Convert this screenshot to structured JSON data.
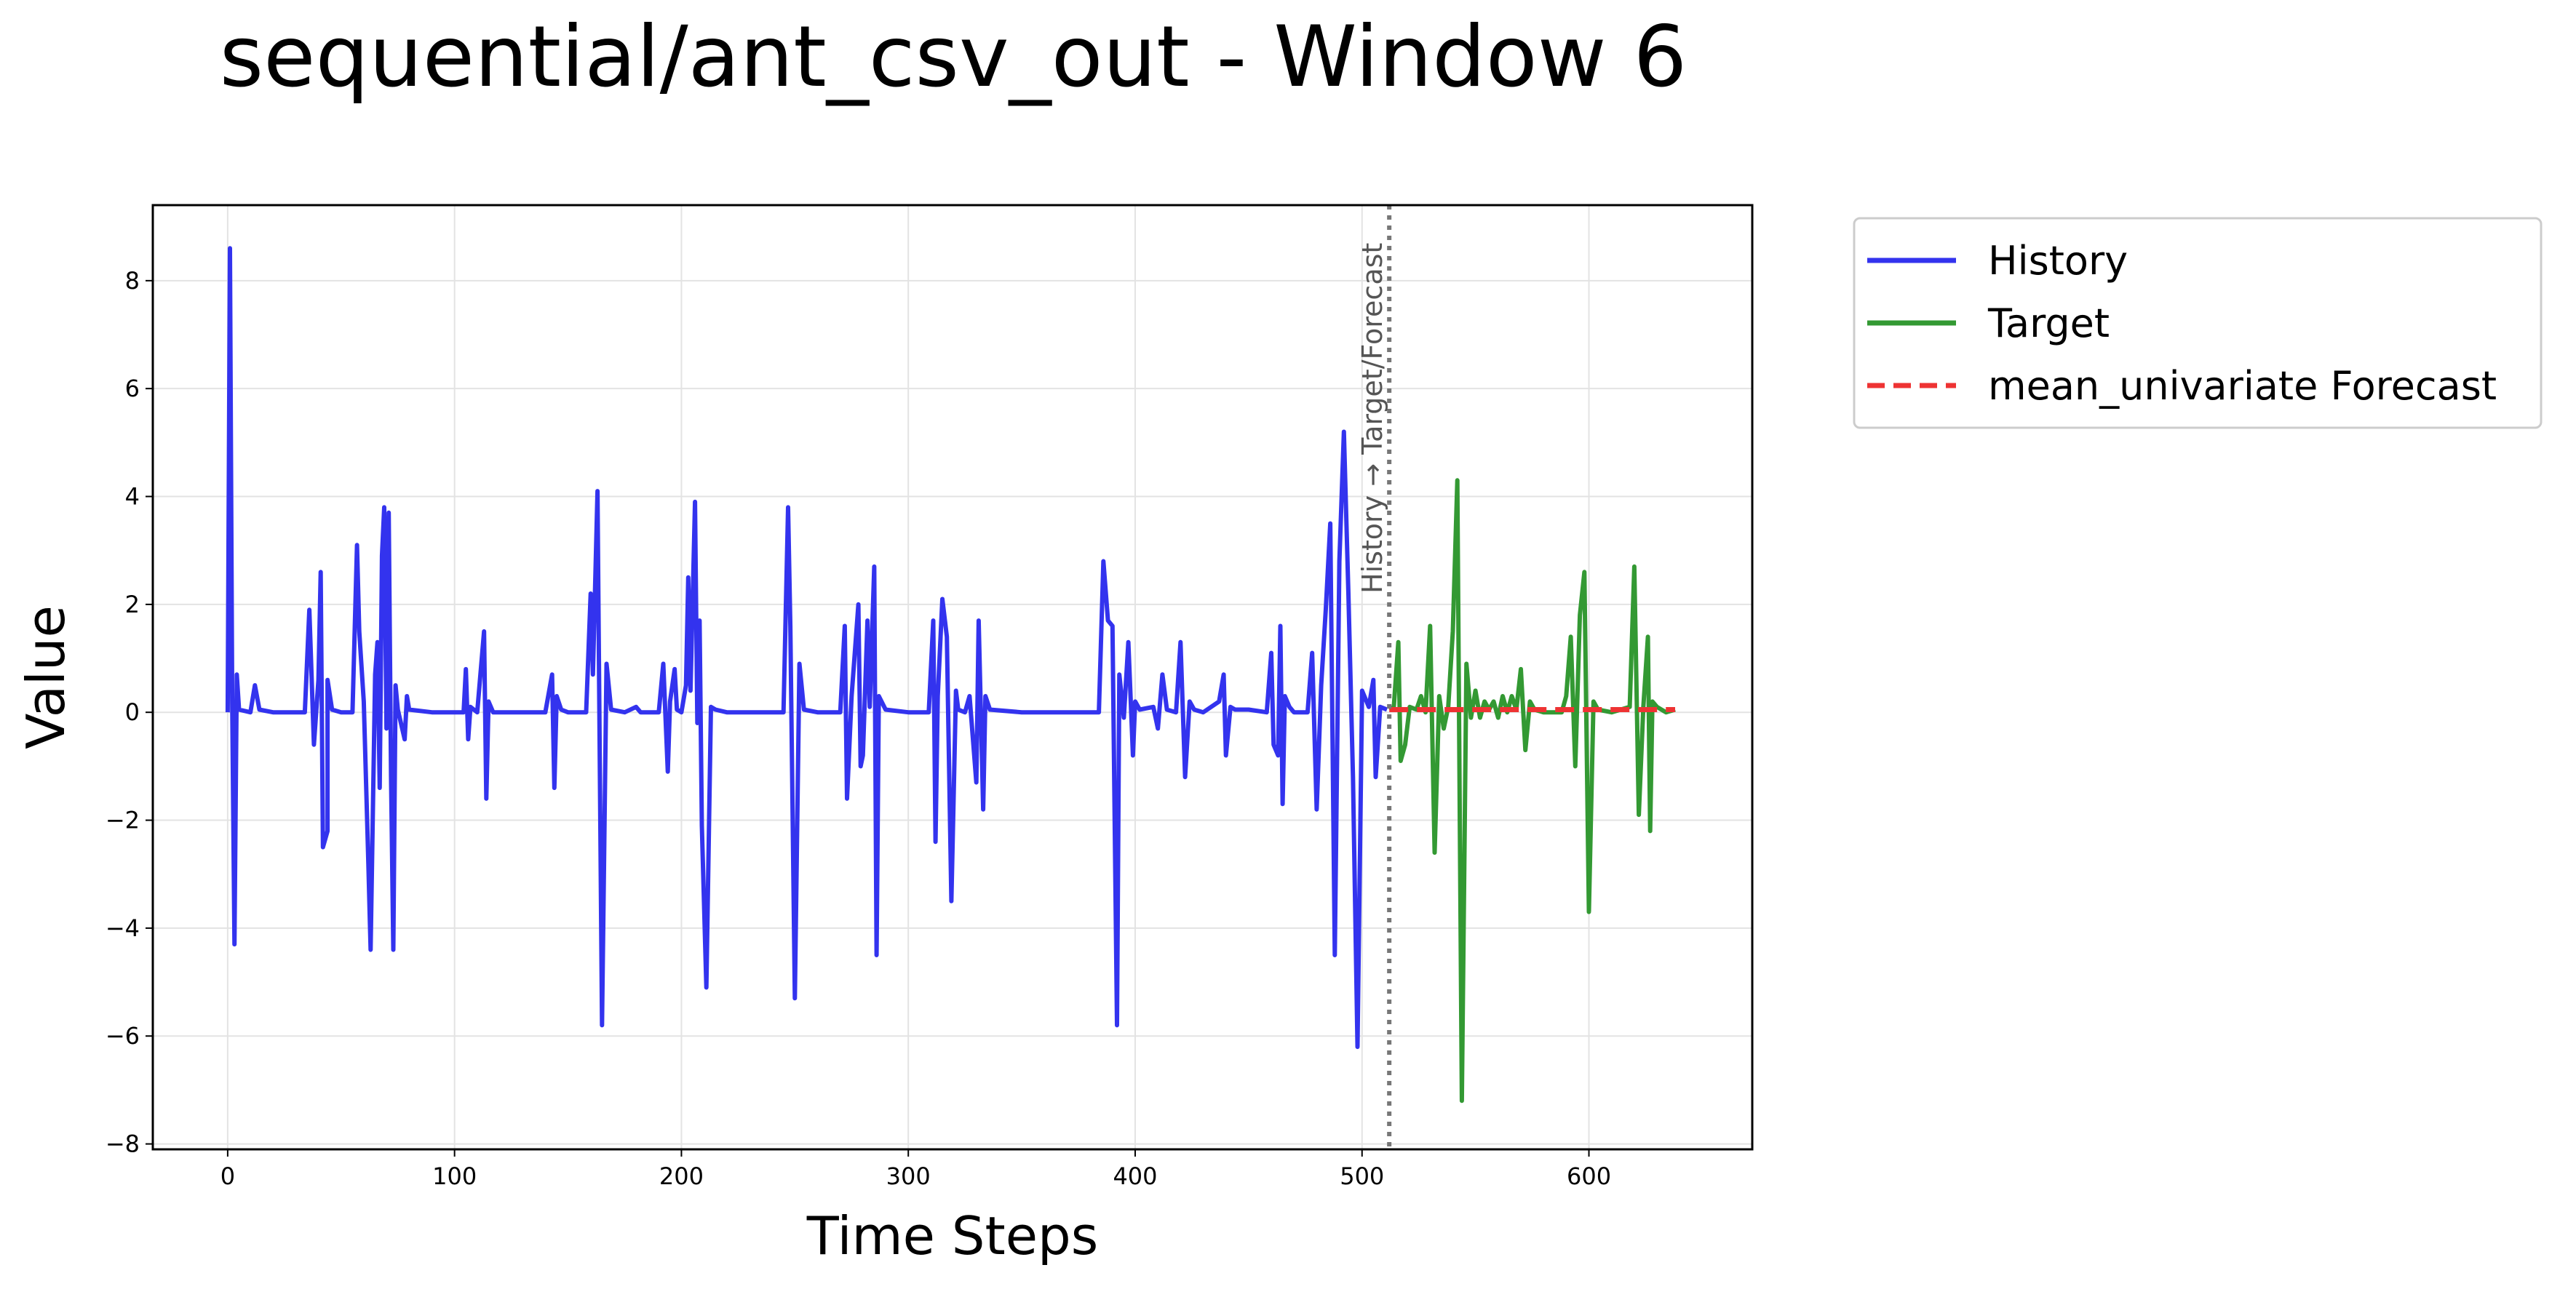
{
  "chart_data": {
    "type": "line",
    "title": "sequential/ant_csv_out - Window 6",
    "xlabel": "Time Steps",
    "ylabel": "Value",
    "xlim": [
      -33,
      672
    ],
    "ylim": [
      -8.1,
      9.4
    ],
    "xticks": [
      0,
      100,
      200,
      300,
      400,
      500,
      600
    ],
    "yticks": [
      -8,
      -6,
      -4,
      -2,
      0,
      2,
      4,
      6,
      8
    ],
    "grid": true,
    "legend_position": "outside-top-right",
    "divider": {
      "x": 512,
      "label": "History → Target/Forecast",
      "color": "#777777"
    },
    "series": [
      {
        "name": "History",
        "color": "#3333ee",
        "style": "solid",
        "points": [
          [
            0,
            0
          ],
          [
            1,
            8.6
          ],
          [
            2,
            0.2
          ],
          [
            3,
            -4.3
          ],
          [
            4,
            0.7
          ],
          [
            5,
            0.05
          ],
          [
            10,
            0
          ],
          [
            12,
            0.5
          ],
          [
            14,
            0.05
          ],
          [
            20,
            0
          ],
          [
            30,
            0
          ],
          [
            34,
            0
          ],
          [
            36,
            1.9
          ],
          [
            38,
            -0.6
          ],
          [
            40,
            0.6
          ],
          [
            41,
            2.6
          ],
          [
            42,
            -2.5
          ],
          [
            44,
            -2.2
          ],
          [
            44,
            0.6
          ],
          [
            46,
            0.05
          ],
          [
            50,
            0
          ],
          [
            55,
            0
          ],
          [
            57,
            3.1
          ],
          [
            58,
            1.5
          ],
          [
            60,
            0.2
          ],
          [
            62,
            -2.8
          ],
          [
            63,
            -4.4
          ],
          [
            65,
            0.7
          ],
          [
            66,
            1.3
          ],
          [
            67,
            -1.4
          ],
          [
            68,
            2.9
          ],
          [
            69,
            3.8
          ],
          [
            70,
            -0.3
          ],
          [
            71,
            3.7
          ],
          [
            72,
            -1.2
          ],
          [
            73,
            -4.4
          ],
          [
            74,
            0.5
          ],
          [
            75,
            0.05
          ],
          [
            78,
            -0.5
          ],
          [
            79,
            0.3
          ],
          [
            80,
            0.05
          ],
          [
            90,
            0
          ],
          [
            100,
            0
          ],
          [
            104,
            0
          ],
          [
            105,
            0.8
          ],
          [
            106,
            -0.5
          ],
          [
            107,
            0.1
          ],
          [
            110,
            0
          ],
          [
            113,
            1.5
          ],
          [
            114,
            -1.6
          ],
          [
            115,
            0.2
          ],
          [
            117,
            0
          ],
          [
            130,
            0
          ],
          [
            140,
            0
          ],
          [
            143,
            0.7
          ],
          [
            144,
            -1.4
          ],
          [
            145,
            0.3
          ],
          [
            147,
            0.05
          ],
          [
            150,
            0
          ],
          [
            158,
            0
          ],
          [
            160,
            2.2
          ],
          [
            161,
            0.7
          ],
          [
            163,
            4.1
          ],
          [
            165,
            -5.8
          ],
          [
            167,
            0.9
          ],
          [
            169,
            0.05
          ],
          [
            175,
            0
          ],
          [
            180,
            0.1
          ],
          [
            182,
            0
          ],
          [
            190,
            0
          ],
          [
            192,
            0.9
          ],
          [
            194,
            -1.1
          ],
          [
            195,
            0.2
          ],
          [
            197,
            0.8
          ],
          [
            198,
            0.05
          ],
          [
            200,
            0
          ],
          [
            202,
            0.5
          ],
          [
            203,
            2.5
          ],
          [
            204,
            0.4
          ],
          [
            206,
            3.9
          ],
          [
            207,
            -0.2
          ],
          [
            208,
            1.7
          ],
          [
            209,
            -2.1
          ],
          [
            211,
            -5.1
          ],
          [
            213,
            0.1
          ],
          [
            215,
            0.05
          ],
          [
            220,
            0
          ],
          [
            240,
            0
          ],
          [
            245,
            0
          ],
          [
            247,
            3.8
          ],
          [
            248,
            1.6
          ],
          [
            250,
            -5.3
          ],
          [
            252,
            0.9
          ],
          [
            254,
            0.05
          ],
          [
            260,
            0
          ],
          [
            270,
            0
          ],
          [
            272,
            1.6
          ],
          [
            273,
            -1.6
          ],
          [
            275,
            0.3
          ],
          [
            278,
            2
          ],
          [
            279,
            -1
          ],
          [
            280,
            -0.8
          ],
          [
            282,
            1.7
          ],
          [
            283,
            0.1
          ],
          [
            285,
            2.7
          ],
          [
            286,
            -4.5
          ],
          [
            287,
            0.3
          ],
          [
            290,
            0.05
          ],
          [
            300,
            0
          ],
          [
            309,
            0
          ],
          [
            311,
            1.7
          ],
          [
            312,
            -2.4
          ],
          [
            313,
            0.3
          ],
          [
            315,
            2.1
          ],
          [
            317,
            1.4
          ],
          [
            319,
            -3.5
          ],
          [
            321,
            0.4
          ],
          [
            322,
            0.05
          ],
          [
            325,
            0
          ],
          [
            327,
            0.3
          ],
          [
            330,
            -1.3
          ],
          [
            331,
            1.7
          ],
          [
            333,
            -1.8
          ],
          [
            334,
            0.3
          ],
          [
            336,
            0.05
          ],
          [
            350,
            0
          ],
          [
            370,
            0
          ],
          [
            384,
            0
          ],
          [
            386,
            2.8
          ],
          [
            388,
            1.7
          ],
          [
            390,
            1.6
          ],
          [
            392,
            -5.8
          ],
          [
            393,
            0.7
          ],
          [
            395,
            -0.1
          ],
          [
            397,
            1.3
          ],
          [
            399,
            -0.8
          ],
          [
            400,
            0.2
          ],
          [
            402,
            0.05
          ],
          [
            408,
            0.1
          ],
          [
            410,
            -0.3
          ],
          [
            412,
            0.7
          ],
          [
            414,
            0.05
          ],
          [
            418,
            0
          ],
          [
            420,
            1.3
          ],
          [
            422,
            -1.2
          ],
          [
            424,
            0.2
          ],
          [
            426,
            0.05
          ],
          [
            430,
            0
          ],
          [
            437,
            0.2
          ],
          [
            439,
            0.7
          ],
          [
            440,
            -0.8
          ],
          [
            442,
            0.1
          ],
          [
            444,
            0.05
          ],
          [
            450,
            0.05
          ],
          [
            458,
            0
          ],
          [
            460,
            1.1
          ],
          [
            461,
            -0.6
          ],
          [
            463,
            -0.8
          ],
          [
            464,
            1.6
          ],
          [
            465,
            -1.7
          ],
          [
            466,
            0.3
          ],
          [
            468,
            0.1
          ],
          [
            470,
            0
          ],
          [
            476,
            0
          ],
          [
            478,
            1.1
          ],
          [
            480,
            -1.8
          ],
          [
            482,
            0.5
          ],
          [
            484,
            1.9
          ],
          [
            486,
            3.5
          ],
          [
            488,
            -4.5
          ],
          [
            490,
            2.8
          ],
          [
            492,
            5.2
          ],
          [
            494,
            2.2
          ],
          [
            496,
            -1.2
          ],
          [
            498,
            -6.2
          ],
          [
            500,
            0.4
          ],
          [
            503,
            0.1
          ],
          [
            505,
            0.6
          ],
          [
            506,
            -1.2
          ],
          [
            508,
            0.1
          ],
          [
            511,
            0.05
          ]
        ]
      },
      {
        "name": "Target",
        "color": "#339933",
        "style": "solid",
        "points": [
          [
            512,
            0.05
          ],
          [
            514,
            0.1
          ],
          [
            516,
            1.3
          ],
          [
            517,
            -0.9
          ],
          [
            519,
            -0.6
          ],
          [
            521,
            0.1
          ],
          [
            524,
            0.05
          ],
          [
            526,
            0.3
          ],
          [
            528,
            0
          ],
          [
            530,
            1.6
          ],
          [
            532,
            -2.6
          ],
          [
            534,
            0.3
          ],
          [
            536,
            -0.3
          ],
          [
            538,
            0.1
          ],
          [
            540,
            1.5
          ],
          [
            542,
            4.3
          ],
          [
            544,
            -7.2
          ],
          [
            546,
            0.9
          ],
          [
            548,
            -0.1
          ],
          [
            550,
            0.4
          ],
          [
            552,
            -0.1
          ],
          [
            554,
            0.2
          ],
          [
            556,
            0.05
          ],
          [
            558,
            0.2
          ],
          [
            560,
            -0.1
          ],
          [
            562,
            0.3
          ],
          [
            564,
            0
          ],
          [
            566,
            0.3
          ],
          [
            568,
            0.05
          ],
          [
            570,
            0.8
          ],
          [
            572,
            -0.7
          ],
          [
            574,
            0.2
          ],
          [
            576,
            0.05
          ],
          [
            580,
            0
          ],
          [
            588,
            0
          ],
          [
            590,
            0.3
          ],
          [
            592,
            1.4
          ],
          [
            594,
            -1
          ],
          [
            596,
            1.8
          ],
          [
            598,
            2.6
          ],
          [
            600,
            -3.7
          ],
          [
            602,
            0.2
          ],
          [
            604,
            0.05
          ],
          [
            610,
            0
          ],
          [
            618,
            0.1
          ],
          [
            620,
            2.7
          ],
          [
            622,
            -1.9
          ],
          [
            624,
            0.1
          ],
          [
            626,
            1.4
          ],
          [
            627,
            -2.2
          ],
          [
            628,
            0.2
          ],
          [
            630,
            0.1
          ],
          [
            634,
            0
          ],
          [
            638,
            0.05
          ]
        ]
      },
      {
        "name": "mean_univariate Forecast",
        "color": "#ee3333",
        "style": "dashed",
        "points": [
          [
            512,
            0.05
          ],
          [
            638,
            0.05
          ]
        ]
      }
    ]
  }
}
